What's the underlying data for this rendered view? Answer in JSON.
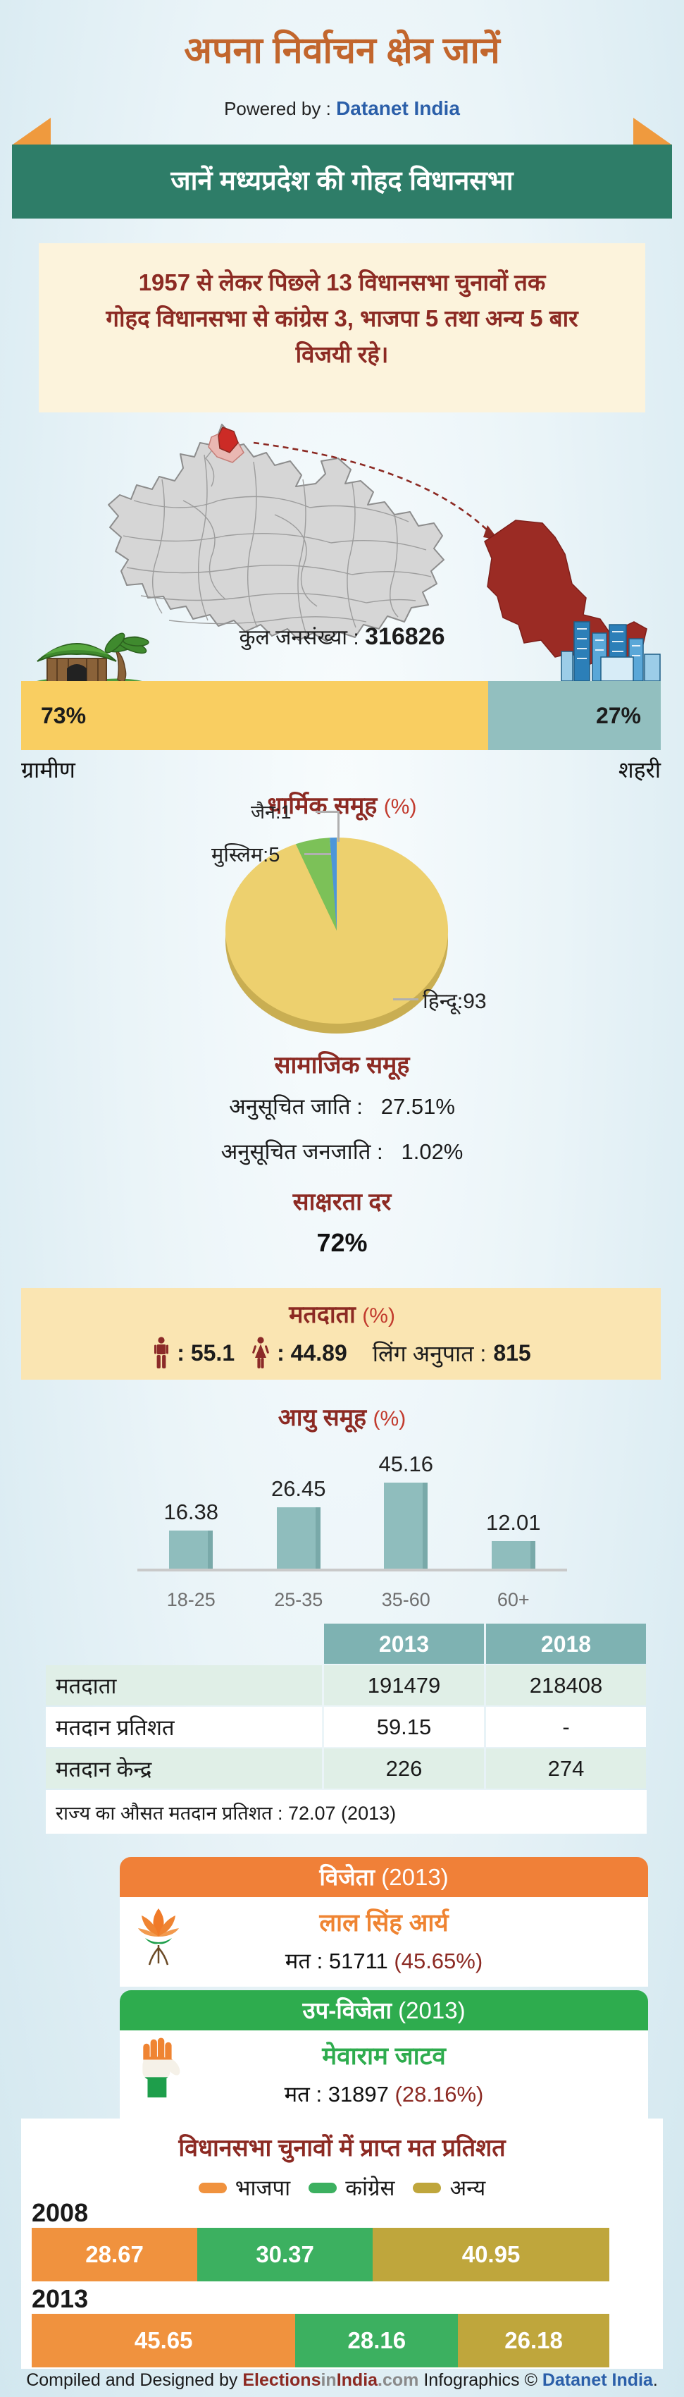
{
  "header": {
    "title": "अपना निर्वाचन क्षेत्र जानें",
    "powered_by_label": "Powered by :",
    "powered_by_brand": "Datanet India"
  },
  "banner": {
    "text": "जानें मध्यप्रदेश की गोहद  विधानसभा"
  },
  "intro": {
    "line1": "1957 से लेकर पिछले 13 विधानसभा चुनावों तक",
    "line2": "गोहद विधानसभा से कांग्रेस 3, भाजपा 5 तथा अन्य 5 बार",
    "line3": "विजयी रहे।"
  },
  "population": {
    "label": "कुल जनसंख्या :",
    "value": "316826"
  },
  "rural_urban": {
    "rural_pct": "73%",
    "urban_pct": "27%",
    "rural_label": "ग्रामीण",
    "urban_label": "शहरी"
  },
  "religion": {
    "title": "धार्मिक समूह",
    "pct": "(%)",
    "label_jain": "जैन:1",
    "label_muslim": "मुस्लिम:5",
    "label_hindu": "हिन्दू:93"
  },
  "social": {
    "title": "सामाजिक समूह",
    "sc_label": "अनुसूचित जाति :",
    "sc_value": "27.51%",
    "st_label": "अनुसूचित जनजाति :",
    "st_value": "1.02%"
  },
  "literacy": {
    "title": "साक्षरता दर",
    "value": "72%"
  },
  "voters": {
    "title": "मतदाता",
    "pct": "(%)",
    "male_value": ": 55.1",
    "female_value": ": 44.89",
    "sex_ratio_label": "लिंग अनुपात :",
    "sex_ratio_value": "815"
  },
  "age": {
    "title": "आयु समूह",
    "pct": "(%)"
  },
  "table": {
    "note": "राज्य का औसत मतदान प्रतिशत : 72.07 (2013)"
  },
  "winner": {
    "header_bold": "विजेता",
    "header_year": "(2013)",
    "name": "लाल सिंह आर्य",
    "votes_label": "मत :",
    "votes": "51711",
    "votes_pct": "(45.65%)"
  },
  "runner_up": {
    "header_bold": "उप-विजेता",
    "header_year": "(2013)",
    "name": "मेवाराम जाटव",
    "votes_label": "मत :",
    "votes": "31897",
    "votes_pct": "(28.16%)"
  },
  "voteshare": {
    "title": "विधानसभा चुनावों में प्राप्त मत प्रतिशत"
  },
  "footer": {
    "part1": "Compiled and Designed by ",
    "brand1a": "Elections",
    "brand1b": "in",
    "brand1c": "India",
    "brand1d": ".com",
    "part2": " Infographics © ",
    "brand2": "Datanet India",
    "dot": "."
  },
  "colors": {
    "title_orange": "#c2662d",
    "banner_green": "#2e7d68",
    "ribbon_orange": "#ef9a3e",
    "dark_red": "#8c2a23",
    "accent_red": "#c23b2e",
    "cream": "#fcf3dc",
    "voters_cream": "#fae5b2",
    "rural_yellow": "#f9ce61",
    "urban_teal": "#92bfbf",
    "table_teal": "#7eb2b2",
    "mint": "#e0efe7",
    "bjp_orange": "#f08038",
    "inc_green": "#2eac4e",
    "other_olive": "#bfa63c",
    "brand_blue": "#2b5fa9"
  },
  "chart_data": [
    {
      "type": "pie",
      "title": "धार्मिक समूह (%)",
      "labels": [
        "हिन्दू",
        "मुस्लिम",
        "जैन"
      ],
      "values": [
        93,
        5,
        1
      ],
      "colors": [
        "#edd06e",
        "#7cc158",
        "#4d96d9"
      ],
      "legend_position": "callout-labels"
    },
    {
      "type": "bar",
      "title": "आयु समूह (%)",
      "categories": [
        "18-25",
        "25-35",
        "35-60",
        "60+"
      ],
      "values": [
        16.38,
        26.45,
        45.16,
        12.01
      ],
      "color": "#8fbdbd",
      "xlabel": "",
      "ylabel": "",
      "ylim": [
        0,
        50
      ],
      "grid": false
    },
    {
      "type": "bar",
      "subtype": "stacked-horizontal",
      "title": "विधानसभा चुनावों में प्राप्त मत प्रतिशत",
      "categories": [
        "2008",
        "2013"
      ],
      "series": [
        {
          "name": "भाजपा",
          "color": "#f0923e",
          "values": [
            28.67,
            45.65
          ]
        },
        {
          "name": "कांग्रेस",
          "color": "#3cb060",
          "values": [
            30.37,
            28.16
          ]
        },
        {
          "name": "अन्य",
          "color": "#bfa63c",
          "values": [
            40.95,
            26.18
          ]
        }
      ],
      "xlim": [
        0,
        100
      ],
      "legend_position": "top"
    },
    {
      "type": "bar",
      "subtype": "split-100",
      "title": "ग्रामीण / शहरी",
      "categories": [
        "ग्रामीण",
        "शहरी"
      ],
      "values": [
        73,
        27
      ],
      "colors": [
        "#f9ce61",
        "#92bfbf"
      ]
    },
    {
      "type": "table",
      "columns": [
        "",
        "2013",
        "2018"
      ],
      "rows": [
        [
          "मतदाता",
          "191479",
          "218408"
        ],
        [
          "मतदान प्रतिशत",
          "59.15",
          "-"
        ],
        [
          "मतदान केन्द्र",
          "226",
          "274"
        ]
      ]
    }
  ]
}
